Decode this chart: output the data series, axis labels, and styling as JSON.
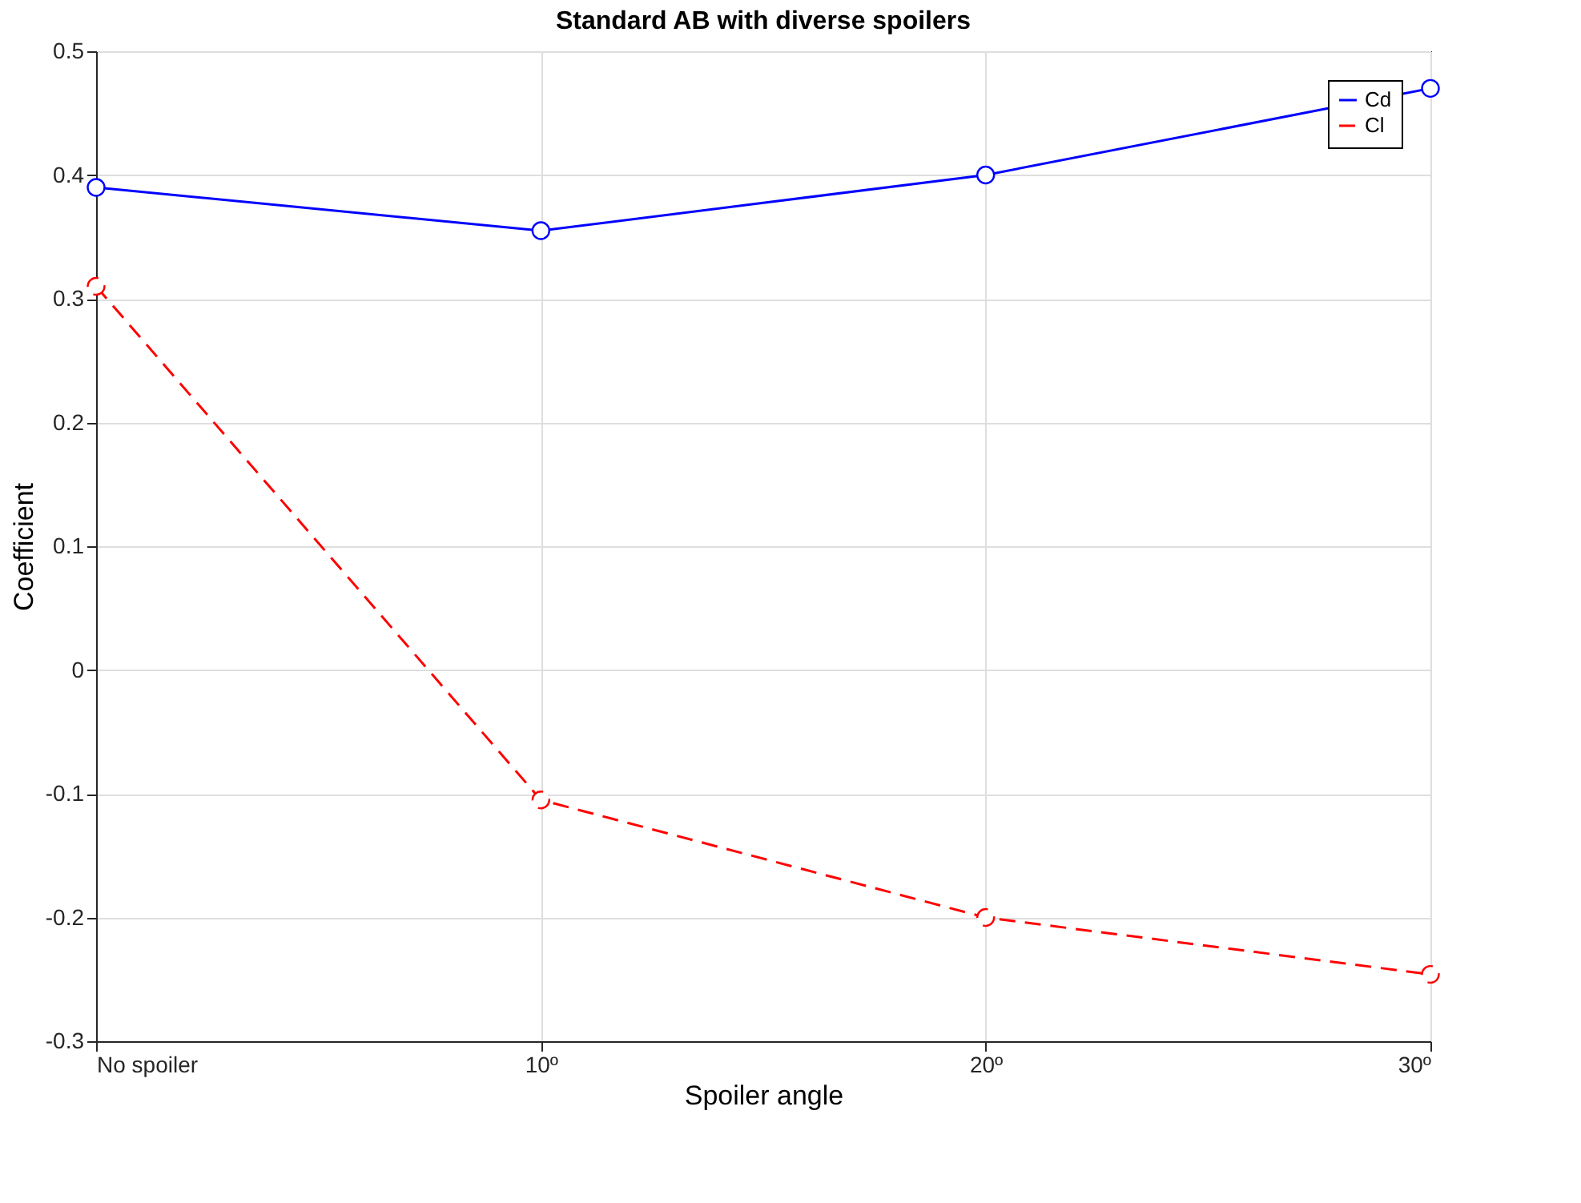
{
  "chart_data": {
    "type": "line",
    "title": "Standard AB with diverse spoilers",
    "xlabel": "Spoiler angle",
    "ylabel": "Coefficient",
    "x": [
      0,
      10,
      20,
      30
    ],
    "series": [
      {
        "name": "Cd",
        "color": "#0000ff",
        "values": [
          0.39,
          0.355,
          0.4,
          0.47
        ],
        "line_style": "solid"
      },
      {
        "name": "Cl",
        "color": "#ff0000",
        "values": [
          0.31,
          -0.105,
          -0.2,
          -0.246
        ],
        "line_style": "dashed"
      }
    ],
    "xlim": [
      0,
      30
    ],
    "xticks": [
      {
        "value": 0,
        "label": "No spoiler"
      },
      {
        "value": 10,
        "label": "10º"
      },
      {
        "value": 20,
        "label": "20º"
      },
      {
        "value": 30,
        "label": "30º"
      }
    ],
    "ylim": [
      -0.3,
      0.5
    ],
    "yticks": [
      -0.3,
      -0.2,
      -0.1,
      0,
      0.1,
      0.2,
      0.3,
      0.4,
      0.5
    ],
    "grid": true,
    "legend": "top right",
    "marker": "circle"
  }
}
